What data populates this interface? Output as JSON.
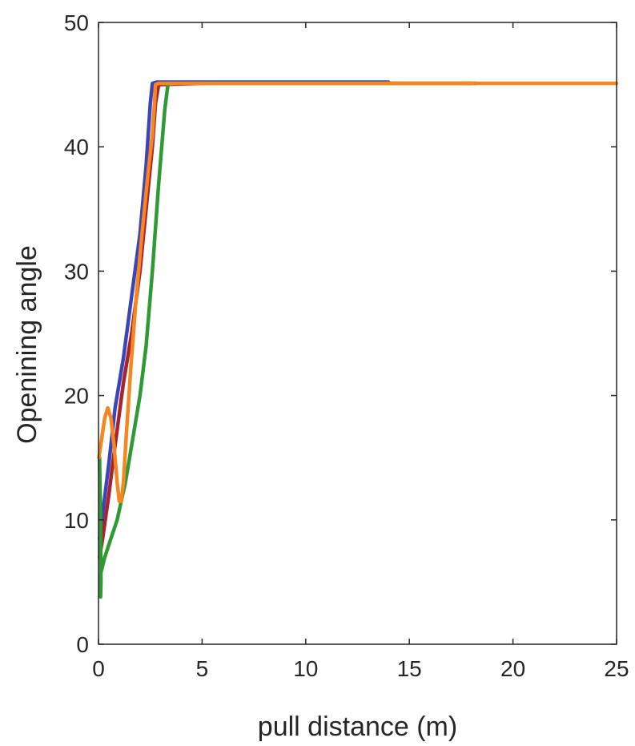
{
  "chart_data": {
    "type": "line",
    "title": "",
    "xlabel": "pull distance (m)",
    "ylabel": "Openining angle",
    "xlim": [
      0,
      25
    ],
    "ylim": [
      0,
      50
    ],
    "xticks": [
      0,
      5,
      10,
      15,
      20,
      25
    ],
    "yticks": [
      0,
      10,
      20,
      30,
      40,
      50
    ],
    "grid": false,
    "legend": "none",
    "series": [
      {
        "color": "#3b45b8",
        "x": [
          0.05,
          0.2,
          0.5,
          0.8,
          1.2,
          1.6,
          2.0,
          2.3,
          2.5,
          2.6,
          2.8,
          4,
          8,
          12,
          14
        ],
        "y": [
          8.5,
          10.5,
          14.5,
          19,
          23,
          28,
          33,
          38.5,
          43.5,
          45.1,
          45.2,
          45.2,
          45.2,
          45.2,
          45.2
        ]
      },
      {
        "color": "#a8232d",
        "x": [
          0.05,
          0.2,
          0.5,
          0.8,
          1.2,
          1.6,
          2.0,
          2.3,
          2.6,
          2.75,
          2.9,
          5,
          10,
          15,
          18
        ],
        "y": [
          7,
          8.5,
          12,
          16,
          21,
          25,
          30,
          35,
          40,
          43.5,
          45,
          45.1,
          45.1,
          45.1,
          45.1
        ]
      },
      {
        "color": "#2f9a34",
        "x": [
          0.05,
          0.1,
          0.12,
          0.1,
          0.08,
          0.3,
          0.6,
          0.9,
          1.3,
          1.7,
          2.0,
          2.3,
          2.6,
          2.9,
          3.2,
          3.35,
          3.6,
          8,
          14,
          18.2
        ],
        "y": [
          15,
          10,
          5,
          3.8,
          5.5,
          7,
          8.5,
          10,
          13,
          17,
          20,
          24,
          30,
          37,
          43,
          45,
          45.1,
          45.1,
          45.1,
          45.1
        ]
      },
      {
        "color": "#f6861f",
        "x": [
          0.02,
          0.15,
          0.3,
          0.45,
          0.6,
          0.75,
          0.9,
          1.0,
          1.1,
          1.2,
          1.35,
          1.55,
          1.8,
          2.1,
          2.4,
          2.6,
          2.7,
          2.75,
          2.9,
          5,
          10,
          15,
          20,
          25
        ],
        "y": [
          15,
          16.5,
          18.2,
          19,
          18.2,
          16,
          13,
          11.5,
          11.5,
          13,
          17,
          22,
          27.5,
          33,
          38,
          41,
          43.5,
          45,
          45.1,
          45.1,
          45.1,
          45.1,
          45.1,
          45.1
        ]
      }
    ]
  }
}
